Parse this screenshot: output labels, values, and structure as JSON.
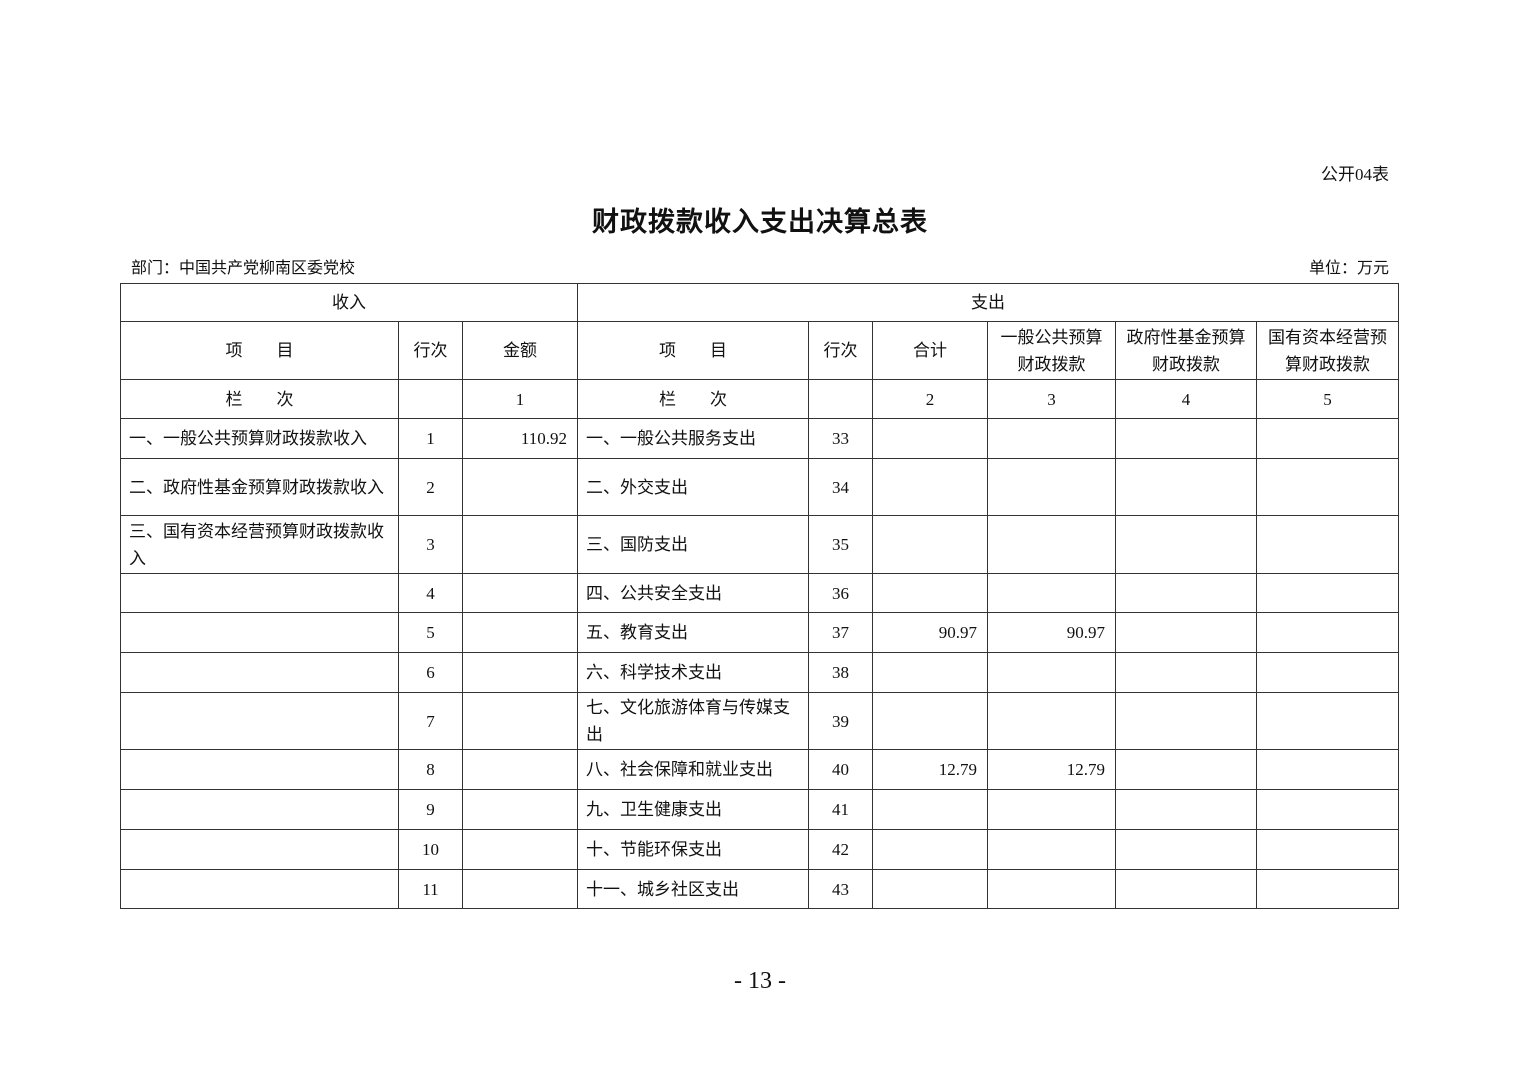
{
  "form_no": "公开04表",
  "title": "财政拨款收入支出决算总表",
  "department": "部门：中国共产党柳南区委党校",
  "unit": "单位：万元",
  "header": {
    "income": "收入",
    "expense": "支出",
    "cols": [
      "项　　目",
      "行次",
      "金额",
      "项　　目",
      "行次",
      "合计",
      "一般公共预算财政拨款",
      "政府性基金预算财政拨款",
      "国有资本经营预算财政拨款"
    ],
    "col_index": [
      "栏　　次",
      "",
      "1",
      "栏　　次",
      "",
      "2",
      "3",
      "4",
      "5"
    ]
  },
  "rows": [
    {
      "in_item": "一、一般公共预算财政拨款收入",
      "in_no": "1",
      "in_amt": "110.92",
      "ex_item": "一、一般公共服务支出",
      "ex_no": "33",
      "total": "",
      "general": "",
      "fund": "",
      "state": ""
    },
    {
      "in_item": "二、政府性基金预算财政拨款收入",
      "in_no": "2",
      "in_amt": "",
      "ex_item": "二、外交支出",
      "ex_no": "34",
      "total": "",
      "general": "",
      "fund": "",
      "state": ""
    },
    {
      "in_item": "三、国有资本经营预算财政拨款收入",
      "in_no": "3",
      "in_amt": "",
      "ex_item": "三、国防支出",
      "ex_no": "35",
      "total": "",
      "general": "",
      "fund": "",
      "state": ""
    },
    {
      "in_item": "",
      "in_no": "4",
      "in_amt": "",
      "ex_item": "四、公共安全支出",
      "ex_no": "36",
      "total": "",
      "general": "",
      "fund": "",
      "state": ""
    },
    {
      "in_item": "",
      "in_no": "5",
      "in_amt": "",
      "ex_item": "五、教育支出",
      "ex_no": "37",
      "total": "90.97",
      "general": "90.97",
      "fund": "",
      "state": ""
    },
    {
      "in_item": "",
      "in_no": "6",
      "in_amt": "",
      "ex_item": "六、科学技术支出",
      "ex_no": "38",
      "total": "",
      "general": "",
      "fund": "",
      "state": ""
    },
    {
      "in_item": "",
      "in_no": "7",
      "in_amt": "",
      "ex_item": "七、文化旅游体育与传媒支出",
      "ex_no": "39",
      "total": "",
      "general": "",
      "fund": "",
      "state": ""
    },
    {
      "in_item": "",
      "in_no": "8",
      "in_amt": "",
      "ex_item": "八、社会保障和就业支出",
      "ex_no": "40",
      "total": "12.79",
      "general": "12.79",
      "fund": "",
      "state": ""
    },
    {
      "in_item": "",
      "in_no": "9",
      "in_amt": "",
      "ex_item": "九、卫生健康支出",
      "ex_no": "41",
      "total": "",
      "general": "",
      "fund": "",
      "state": ""
    },
    {
      "in_item": "",
      "in_no": "10",
      "in_amt": "",
      "ex_item": "十、节能环保支出",
      "ex_no": "42",
      "total": "",
      "general": "",
      "fund": "",
      "state": ""
    },
    {
      "in_item": "",
      "in_no": "11",
      "in_amt": "",
      "ex_item": "十一、城乡社区支出",
      "ex_no": "43",
      "total": "",
      "general": "",
      "fund": "",
      "state": ""
    }
  ],
  "page_number": "- 13 -"
}
